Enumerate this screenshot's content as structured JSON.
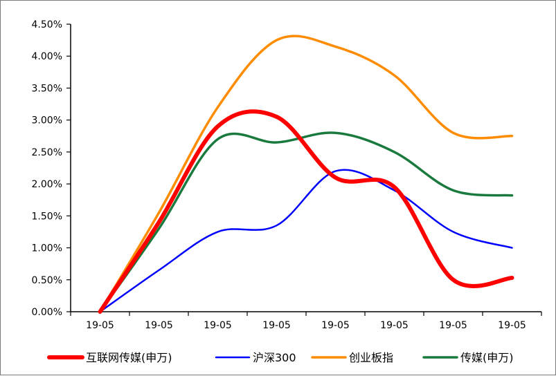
{
  "chart_data": {
    "type": "line",
    "title": "",
    "xlabel": "",
    "ylabel": "",
    "categories": [
      "19-05",
      "19-05",
      "19-05",
      "19-05",
      "19-05",
      "19-05",
      "19-05",
      "19-05"
    ],
    "y_tick_labels": [
      "0.00%",
      "0.50%",
      "1.00%",
      "1.50%",
      "2.00%",
      "2.50%",
      "3.00%",
      "3.50%",
      "4.00%",
      "4.50%"
    ],
    "ylim": [
      0,
      0.045
    ],
    "y_format": "percent",
    "grid": false,
    "legend_position": "bottom",
    "series": [
      {
        "name": "互联网传媒(申万)",
        "color": "#ff0000",
        "width": "thick",
        "values": [
          0.0,
          0.014,
          0.029,
          0.0305,
          0.021,
          0.0195,
          0.005,
          0.0053
        ]
      },
      {
        "name": "沪深300",
        "color": "#0000ff",
        "width": "thin",
        "values": [
          0.0,
          0.0065,
          0.0125,
          0.0135,
          0.022,
          0.019,
          0.0125,
          0.01
        ]
      },
      {
        "name": "创业板指",
        "color": "#ff8c00",
        "width": "medium",
        "values": [
          0.0,
          0.0155,
          0.032,
          0.0425,
          0.0415,
          0.037,
          0.028,
          0.0275
        ]
      },
      {
        "name": "传媒(申万)",
        "color": "#1a7a3e",
        "width": "medium",
        "values": [
          0.0,
          0.013,
          0.027,
          0.0265,
          0.028,
          0.025,
          0.019,
          0.0182
        ]
      }
    ]
  }
}
